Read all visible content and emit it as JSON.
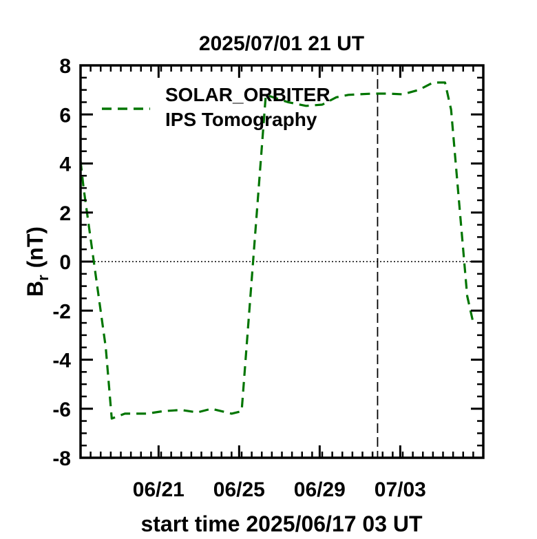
{
  "chart_data": {
    "type": "line",
    "title": "2025/07/01 21 UT",
    "xlabel": "start time 2025/06/17 03 UT",
    "ylabel": "B",
    "ylabel_sub": "r",
    "ylabel_unit": "(nT)",
    "x_unit": "days since start time",
    "xlim": [
      0,
      20
    ],
    "ylim": [
      -8,
      8
    ],
    "y_ticks": [
      8,
      6,
      4,
      2,
      0,
      -2,
      -4,
      -6,
      -8
    ],
    "x_ticks": [
      {
        "x": 3.875,
        "label": "06/21"
      },
      {
        "x": 7.875,
        "label": "06/25"
      },
      {
        "x": 11.875,
        "label": "06/29"
      },
      {
        "x": 15.875,
        "label": "07/03"
      }
    ],
    "x_minor_step": 0.5,
    "y_minor_step": 0.5,
    "zero_line": "dotted",
    "current_time_marker": {
      "x": 14.75,
      "style": "dashed"
    },
    "legend": {
      "placement": "top-left",
      "entries": [
        "SOLAR_ORBITER",
        "IPS Tomography"
      ]
    },
    "series": [
      {
        "name": "SOLAR_ORBITER IPS Tomography",
        "color": "#007500",
        "style": "dashed",
        "x": [
          0.0,
          0.15,
          1.25,
          1.55,
          2.2,
          3.3,
          4.1,
          5.0,
          5.8,
          6.5,
          7.5,
          8.0,
          9.2,
          10.3,
          11.2,
          12.0,
          12.7,
          13.3,
          14.5,
          15.3,
          16.0,
          16.8,
          17.5,
          18.1,
          18.4,
          19.2,
          19.5
        ],
        "y": [
          4.1,
          3.0,
          -3.5,
          -6.4,
          -6.2,
          -6.2,
          -6.1,
          -6.05,
          -6.15,
          -6.0,
          -6.2,
          -6.1,
          6.8,
          6.5,
          6.35,
          6.4,
          6.7,
          6.8,
          6.85,
          6.85,
          6.82,
          7.0,
          7.3,
          7.3,
          6.2,
          -1.4,
          -2.5
        ]
      }
    ]
  }
}
